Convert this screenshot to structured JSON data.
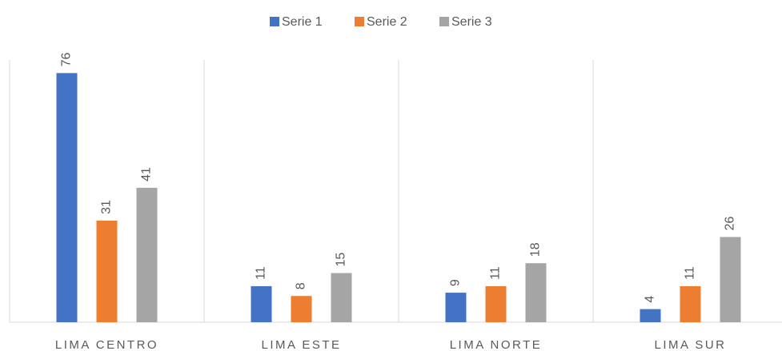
{
  "chart_data": {
    "type": "bar",
    "categories": [
      "LIMA CENTRO",
      "LIMA ESTE",
      "LIMA NORTE",
      "LIMA SUR"
    ],
    "series": [
      {
        "name": "Serie 1",
        "color": "#4472c4",
        "values": [
          76,
          11,
          9,
          4
        ]
      },
      {
        "name": "Serie 2",
        "color": "#ed7d31",
        "values": [
          31,
          8,
          11,
          11
        ]
      },
      {
        "name": "Serie 3",
        "color": "#a5a5a5",
        "values": [
          41,
          15,
          18,
          26
        ]
      }
    ],
    "ylim": [
      0,
      80
    ],
    "legend": "top",
    "data_labels": true
  }
}
